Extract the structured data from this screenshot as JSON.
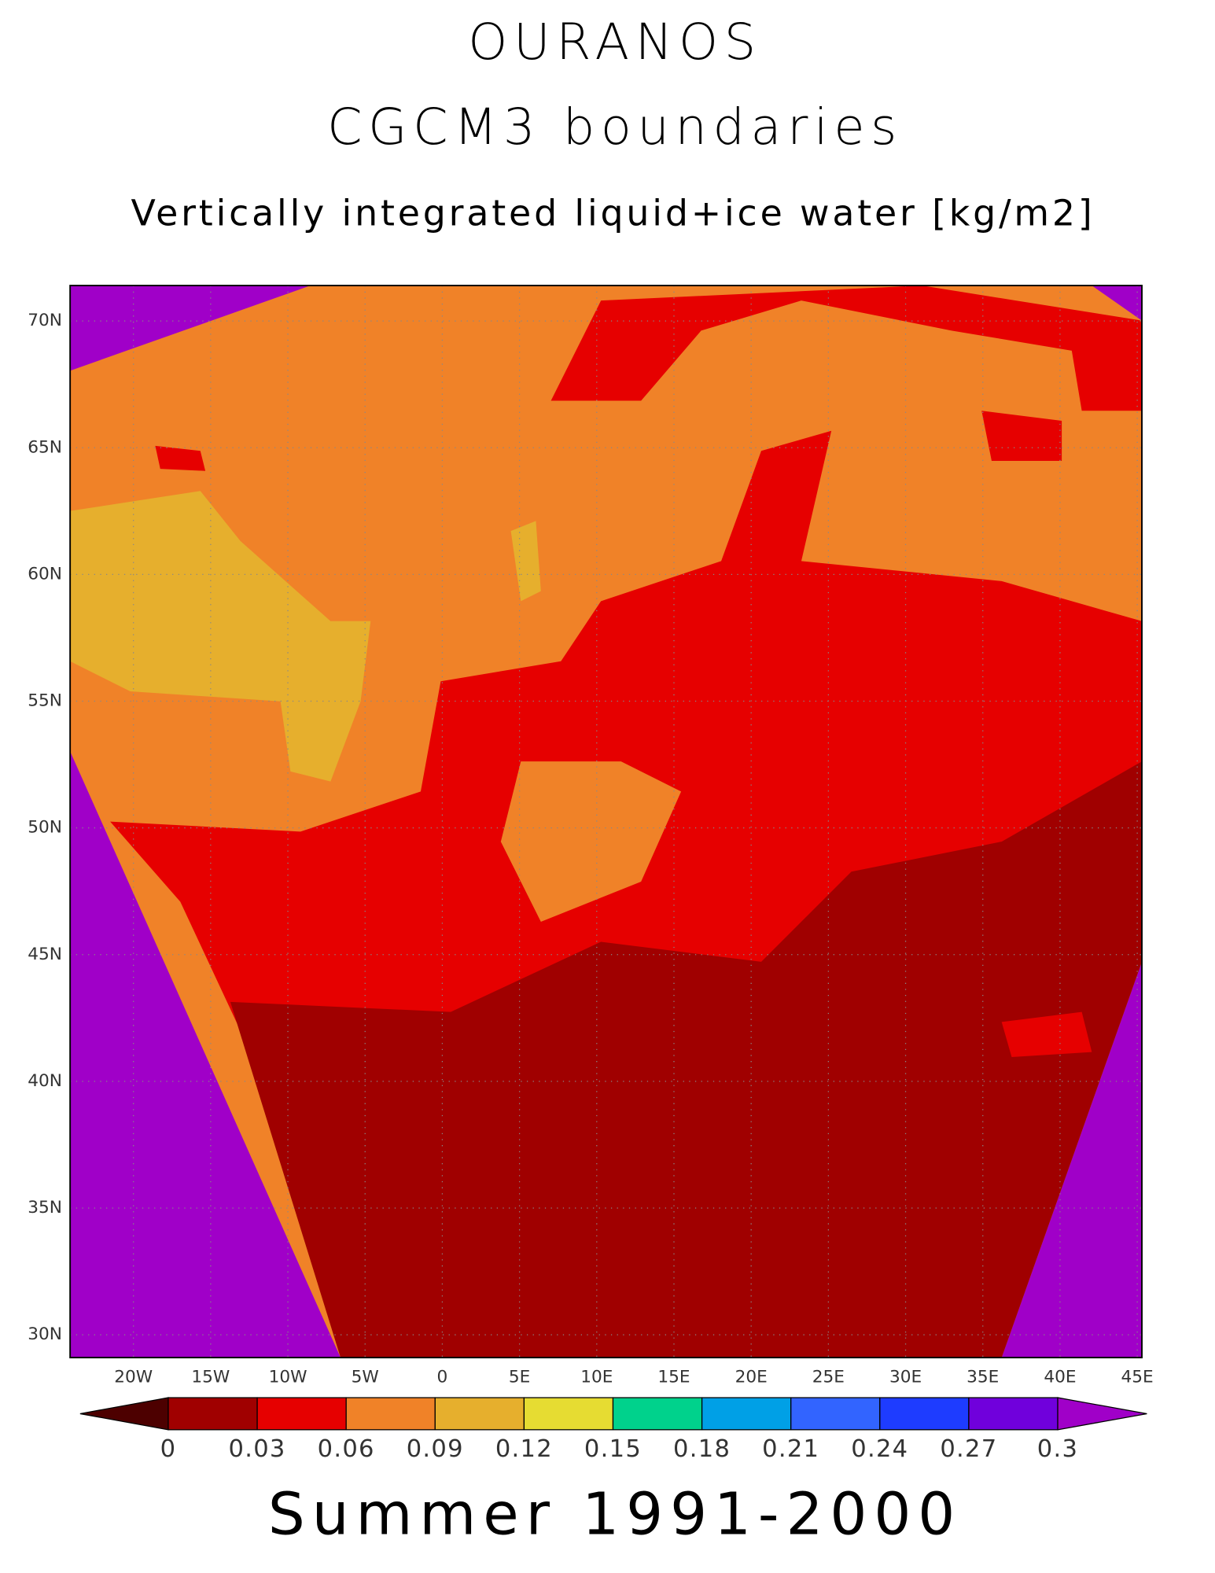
{
  "title": "OURANOS",
  "subtitle": "CGCM3 boundaries",
  "variable": "Vertically integrated liquid+ice water [kg/m2]",
  "period": "Summer 1991-2000",
  "map": {
    "xlim": [
      -24.1,
      45.3
    ],
    "ylim": [
      29.1,
      71.4
    ],
    "xticks": [
      {
        "value": -20,
        "label": "20W"
      },
      {
        "value": -15,
        "label": "15W"
      },
      {
        "value": -10,
        "label": "10W"
      },
      {
        "value": -5,
        "label": "5W"
      },
      0,
      {
        "value": 5,
        "label": "5E"
      },
      {
        "value": 10,
        "label": "10E"
      },
      {
        "value": 15,
        "label": "15E"
      },
      {
        "value": 20,
        "label": "20E"
      },
      {
        "value": 25,
        "label": "25E"
      },
      {
        "value": 30,
        "label": "30E"
      },
      {
        "value": 35,
        "label": "35E"
      },
      {
        "value": 40,
        "label": "40E"
      },
      {
        "value": 45,
        "label": "45E"
      }
    ],
    "yticks": [
      {
        "value": 30,
        "label": "30N"
      },
      {
        "value": 35,
        "label": "35N"
      },
      {
        "value": 40,
        "label": "40N"
      },
      {
        "value": 45,
        "label": "45N"
      },
      {
        "value": 50,
        "label": "50N"
      },
      {
        "value": 55,
        "label": "55N"
      },
      {
        "value": 60,
        "label": "60N"
      },
      {
        "value": 65,
        "label": "65N"
      },
      {
        "value": 70,
        "label": "70N"
      }
    ],
    "grid": true
  },
  "colorbar": {
    "levels": [
      0,
      0.03,
      0.06,
      0.09,
      0.12,
      0.15,
      0.18,
      0.21,
      0.24,
      0.27,
      0.3
    ],
    "colors": [
      "#4d0000",
      "#a00000",
      "#e60000",
      "#f08228",
      "#e6af2d",
      "#e6dc32",
      "#00d28c",
      "#00a0e6",
      "#3264ff",
      "#1e3cff",
      "#7000dc",
      "#a000c8"
    ]
  }
}
